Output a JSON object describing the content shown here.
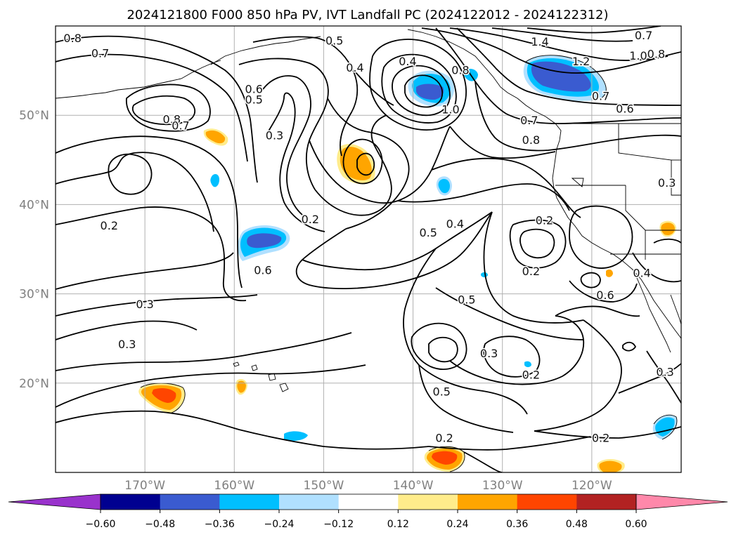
{
  "title": "2024121800 F000 850 hPa PV, IVT Landfall PC (2024122012 - 2024122312)",
  "map": {
    "lat_labels": [
      {
        "text": "50°N",
        "lat": 50
      },
      {
        "text": "40°N",
        "lat": 40
      },
      {
        "text": "30°N",
        "lat": 30
      },
      {
        "text": "20°N",
        "lat": 20
      }
    ],
    "lon_labels": [
      {
        "text": "170°W",
        "lon": -170
      },
      {
        "text": "160°W",
        "lon": -160
      },
      {
        "text": "150°W",
        "lon": -150
      },
      {
        "text": "140°W",
        "lon": -140
      },
      {
        "text": "130°W",
        "lon": -130
      },
      {
        "text": "120°W",
        "lon": -120
      }
    ],
    "extent": {
      "lon_min": -180,
      "lon_max": -110,
      "lat_min": 10,
      "lat_max": 60
    },
    "contour_labels": [
      {
        "text": "0.8",
        "lon": -178.1,
        "lat": 58.6
      },
      {
        "text": "0.7",
        "lon": -175.0,
        "lat": 56.9
      },
      {
        "text": "0.6",
        "lon": -157.8,
        "lat": 52.9
      },
      {
        "text": "0.5",
        "lon": -157.8,
        "lat": 51.7
      },
      {
        "text": "0.8",
        "lon": -167.0,
        "lat": 49.5
      },
      {
        "text": "0.7",
        "lon": -166.0,
        "lat": 48.8
      },
      {
        "text": "0.3",
        "lon": -155.5,
        "lat": 47.7
      },
      {
        "text": "0.2",
        "lon": -174.0,
        "lat": 37.6
      },
      {
        "text": "0.6",
        "lon": -156.8,
        "lat": 32.6
      },
      {
        "text": "0.2",
        "lon": -151.5,
        "lat": 38.3
      },
      {
        "text": "0.3",
        "lon": -170.0,
        "lat": 28.8
      },
      {
        "text": "0.3",
        "lon": -172.0,
        "lat": 24.3
      },
      {
        "text": "0.5",
        "lon": -148.8,
        "lat": 58.3
      },
      {
        "text": "0.4",
        "lon": -146.5,
        "lat": 55.3
      },
      {
        "text": "0.4",
        "lon": -140.6,
        "lat": 56.0
      },
      {
        "text": "0.8",
        "lon": -134.7,
        "lat": 55.0
      },
      {
        "text": "1.0",
        "lon": -135.8,
        "lat": 50.6
      },
      {
        "text": "1.4",
        "lon": -125.8,
        "lat": 58.2
      },
      {
        "text": "1.2",
        "lon": -121.2,
        "lat": 56.0
      },
      {
        "text": "1.0",
        "lon": -114.8,
        "lat": 56.6
      },
      {
        "text": "0.7",
        "lon": -114.2,
        "lat": 58.9
      },
      {
        "text": "0.8",
        "lon": -112.8,
        "lat": 56.8
      },
      {
        "text": "0.7",
        "lon": -119.0,
        "lat": 52.1
      },
      {
        "text": "0.6",
        "lon": -116.3,
        "lat": 50.7
      },
      {
        "text": "0.7",
        "lon": -127.0,
        "lat": 49.4
      },
      {
        "text": "0.8",
        "lon": -126.8,
        "lat": 47.2
      },
      {
        "text": "0.3",
        "lon": -111.6,
        "lat": 42.4
      },
      {
        "text": "0.2",
        "lon": -125.3,
        "lat": 38.2
      },
      {
        "text": "0.5",
        "lon": -138.3,
        "lat": 36.8
      },
      {
        "text": "0.4",
        "lon": -135.3,
        "lat": 37.8
      },
      {
        "text": "0.2",
        "lon": -126.8,
        "lat": 32.5
      },
      {
        "text": "0.4",
        "lon": -114.4,
        "lat": 32.3
      },
      {
        "text": "0.6",
        "lon": -118.5,
        "lat": 29.8
      },
      {
        "text": "0.5",
        "lon": -134.0,
        "lat": 29.3
      },
      {
        "text": "0.3",
        "lon": -131.5,
        "lat": 23.3
      },
      {
        "text": "0.2",
        "lon": -126.8,
        "lat": 20.9
      },
      {
        "text": "0.5",
        "lon": -136.8,
        "lat": 19.0
      },
      {
        "text": "0.2",
        "lon": -136.5,
        "lat": 13.8
      },
      {
        "text": "0.2",
        "lon": -119.0,
        "lat": 13.8
      },
      {
        "text": "0.3",
        "lon": -111.8,
        "lat": 21.2
      }
    ]
  },
  "colorbar": {
    "tick_labels": [
      "−0.60",
      "−0.48",
      "−0.36",
      "−0.24",
      "−0.12",
      "0.12",
      "0.24",
      "0.36",
      "0.48",
      "0.60"
    ],
    "levels": [
      -0.6,
      -0.48,
      -0.36,
      -0.24,
      -0.12,
      0.12,
      0.24,
      0.36,
      0.48,
      0.6
    ],
    "under_color": "#9932cc",
    "over_color": "#ff88aa",
    "colors": [
      "#000090",
      "#3a5bd0",
      "#00bfff",
      "#b0e0ff",
      "#ffffff",
      "#ffec8b",
      "#ffa500",
      "#ff4500",
      "#b22222"
    ]
  }
}
